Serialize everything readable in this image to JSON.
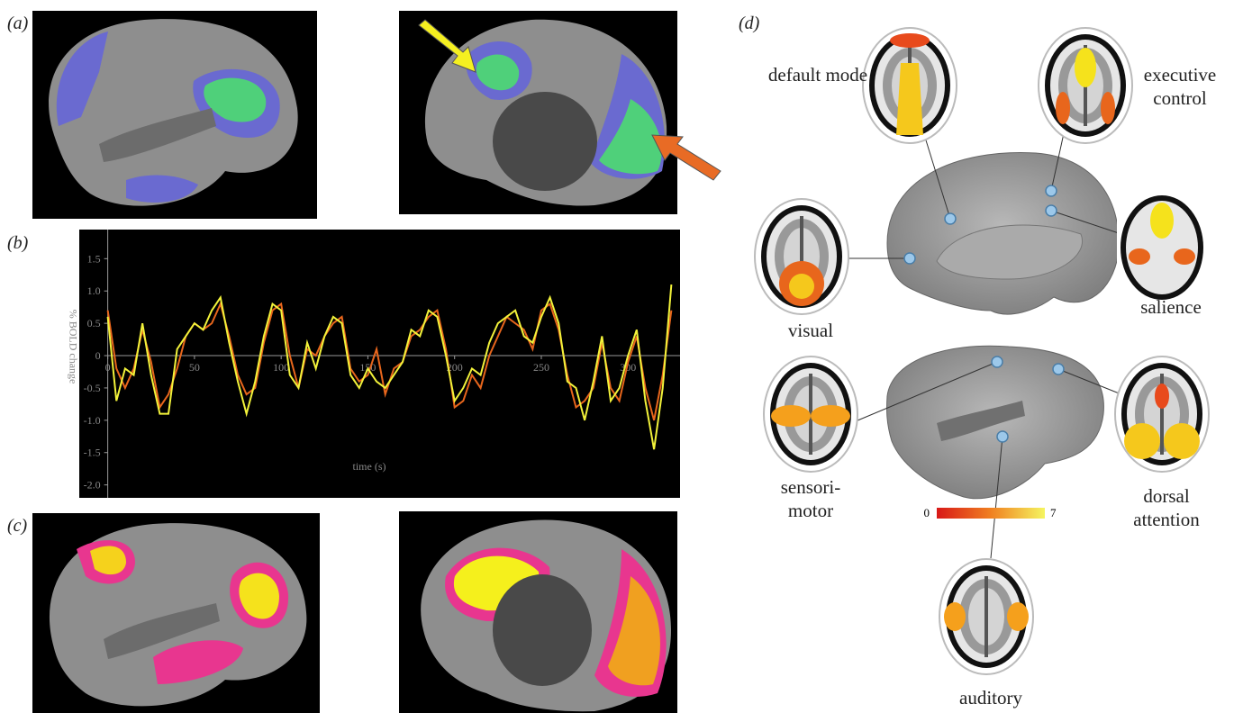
{
  "panel_labels": [
    "(a)",
    "(b)",
    "(c)",
    "(d)"
  ],
  "chart_data": {
    "type": "line",
    "xlabel": "time (s)",
    "ylabel": "% BOLD change",
    "x": [
      0,
      5,
      10,
      15,
      20,
      25,
      30,
      35,
      40,
      45,
      50,
      55,
      60,
      65,
      70,
      75,
      80,
      85,
      90,
      95,
      100,
      105,
      110,
      115,
      120,
      125,
      130,
      135,
      140,
      145,
      150,
      155,
      160,
      165,
      170,
      175,
      180,
      185,
      190,
      195,
      200,
      205,
      210,
      215,
      220,
      225,
      230,
      235,
      240,
      245,
      250,
      255,
      260,
      265,
      270,
      275,
      280,
      285,
      290,
      295,
      300,
      305,
      310,
      315,
      320,
      325
    ],
    "series": [
      {
        "color": "#f2f23a",
        "values": [
          0.6,
          -0.7,
          -0.2,
          -0.3,
          0.5,
          -0.3,
          -0.9,
          -0.9,
          0.1,
          0.3,
          0.5,
          0.4,
          0.7,
          0.9,
          0.2,
          -0.4,
          -0.9,
          -0.4,
          0.3,
          0.8,
          0.7,
          -0.3,
          -0.5,
          0.2,
          -0.2,
          0.3,
          0.6,
          0.5,
          -0.3,
          -0.5,
          -0.2,
          -0.4,
          -0.5,
          -0.3,
          -0.1,
          0.4,
          0.3,
          0.7,
          0.6,
          0.0,
          -0.7,
          -0.5,
          -0.2,
          -0.3,
          0.2,
          0.5,
          0.6,
          0.7,
          0.3,
          0.2,
          0.6,
          0.9,
          0.5,
          -0.4,
          -0.5,
          -1.0,
          -0.4,
          0.3,
          -0.7,
          -0.5,
          0.0,
          0.4,
          -0.7,
          -1.45,
          -0.5,
          1.1
        ]
      },
      {
        "color": "#e8661c",
        "values": [
          0.7,
          -0.2,
          -0.5,
          -0.2,
          0.4,
          -0.1,
          -0.8,
          -0.6,
          -0.2,
          0.3,
          0.5,
          0.4,
          0.5,
          0.8,
          0.3,
          -0.3,
          -0.6,
          -0.5,
          0.2,
          0.7,
          0.8,
          0.0,
          -0.5,
          0.1,
          0.0,
          0.3,
          0.5,
          0.6,
          -0.2,
          -0.4,
          -0.3,
          0.1,
          -0.6,
          -0.2,
          -0.1,
          0.3,
          0.4,
          0.6,
          0.7,
          0.1,
          -0.8,
          -0.7,
          -0.3,
          -0.5,
          0.0,
          0.3,
          0.6,
          0.5,
          0.4,
          0.1,
          0.7,
          0.8,
          0.4,
          -0.3,
          -0.8,
          -0.7,
          -0.5,
          0.2,
          -0.5,
          -0.7,
          -0.1,
          0.3,
          -0.5,
          -1.0,
          -0.3,
          0.7
        ]
      }
    ],
    "xlim": [
      -5,
      330
    ],
    "ylim": [
      -2.2,
      1.95
    ],
    "xticks": [
      0,
      50,
      100,
      150,
      200,
      250,
      300
    ],
    "yticks": [
      {
        "value": 1.5,
        "label": "1.5"
      },
      {
        "value": 1,
        "label": "1.0"
      },
      {
        "value": 0.5,
        "label": "0.5"
      },
      0,
      {
        "value": -0.5,
        "label": "-0.5"
      },
      {
        "value": -1,
        "label": "-1.0"
      },
      {
        "value": -1.5,
        "label": "-1.5"
      },
      {
        "value": -2,
        "label": "-2.0"
      }
    ]
  },
  "networks": [
    "default mode",
    "executive control",
    "visual",
    "salience",
    "sensori-motor",
    "dorsal attention",
    "auditory"
  ],
  "colorbar": {
    "low": "0",
    "high": "7"
  }
}
